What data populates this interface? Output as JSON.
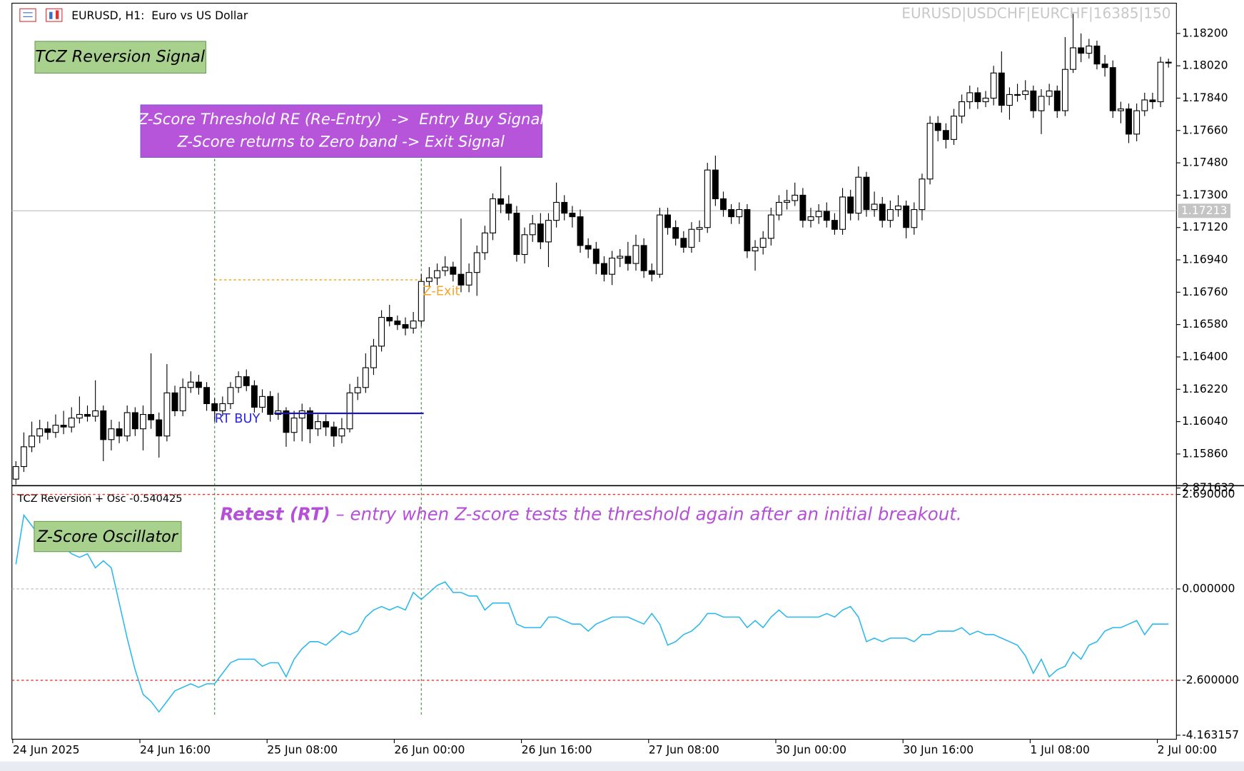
{
  "header": {
    "symbol": "EURUSD, H1:  Euro vs US Dollar",
    "watermark": "EURUSD|USDCHF|EURCHF|16385|150"
  },
  "chart_data": [
    {
      "type": "candlestick",
      "title": "TCZ Reversion Signal",
      "note": [
        "Z-Score Threshold RE (Re-Entry)  ->  Entry Buy Signal",
        "Z-Score returns to Zero band -> Exit Signal"
      ],
      "categories": [
        "24 Jun 2025",
        null,
        null,
        null,
        null,
        null,
        null,
        null,
        null,
        null,
        null,
        null,
        null,
        null,
        null,
        null,
        "24 Jun 16:00",
        null,
        null,
        null,
        null,
        null,
        null,
        null,
        null,
        null,
        null,
        null,
        null,
        null,
        null,
        null,
        "25 Jun 08:00",
        null,
        null,
        null,
        null,
        null,
        null,
        null,
        null,
        null,
        null,
        null,
        null,
        null,
        null,
        null,
        "26 Jun 00:00",
        null,
        null,
        null,
        null,
        null,
        null,
        null,
        null,
        null,
        null,
        null,
        null,
        null,
        null,
        null,
        "26 Jun 16:00",
        null,
        null,
        null,
        null,
        null,
        null,
        null,
        null,
        null,
        null,
        null,
        null,
        null,
        null,
        null,
        "27 Jun 08:00",
        null,
        null,
        null,
        null,
        null,
        null,
        null,
        null,
        null,
        null,
        null,
        null,
        null,
        null,
        null,
        "30 Jun 00:00",
        null,
        null,
        null,
        null,
        null,
        null,
        null,
        null,
        null,
        null,
        null,
        null,
        null,
        null,
        null,
        "30 Jun 16:00",
        null,
        null,
        null,
        null,
        null,
        null,
        null,
        null,
        null,
        null,
        null,
        null,
        null,
        null,
        null,
        "1 Jul 08:00",
        null,
        null,
        null,
        null,
        null,
        null,
        null,
        null,
        null,
        null,
        null,
        null,
        null,
        null,
        null,
        "2 Jul 00:00",
        null
      ],
      "open": [
        1.1572,
        1.1579,
        1.159,
        1.1596,
        1.16,
        1.1598,
        1.1602,
        1.1601,
        1.1606,
        1.1608,
        1.1607,
        1.161,
        1.1594,
        1.16,
        1.1596,
        1.1609,
        1.16,
        1.1608,
        1.1605,
        1.1596,
        1.162,
        1.161,
        1.1623,
        1.1626,
        1.1623,
        1.1614,
        1.161,
        1.1614,
        1.1623,
        1.1629,
        1.1624,
        1.1612,
        1.1618,
        1.1608,
        1.161,
        1.1598,
        1.1606,
        1.161,
        1.16,
        1.1604,
        1.1601,
        1.1596,
        1.16,
        1.162,
        1.1623,
        1.1634,
        1.1646,
        1.1662,
        1.166,
        1.1658,
        1.1656,
        1.166,
        1.1682,
        1.1684,
        1.1688,
        1.169,
        1.1686,
        1.168,
        1.1687,
        1.1698,
        1.1709,
        1.1728,
        1.1725,
        1.172,
        1.1697,
        1.1708,
        1.1714,
        1.1704,
        1.1716,
        1.1726,
        1.172,
        1.1718,
        1.1702,
        1.17,
        1.1692,
        1.1686,
        1.1695,
        1.1696,
        1.1692,
        1.1702,
        1.1688,
        1.1686,
        1.1719,
        1.1712,
        1.1706,
        1.1701,
        1.1711,
        1.1712,
        1.1744,
        1.1728,
        1.1722,
        1.1718,
        1.1722,
        1.1699,
        1.1701,
        1.1706,
        1.1719,
        1.1726,
        1.1727,
        1.173,
        1.1716,
        1.1718,
        1.1721,
        1.1716,
        1.1711,
        1.1729,
        1.172,
        1.174,
        1.1722,
        1.1725,
        1.1716,
        1.1722,
        1.1724,
        1.1712,
        1.1722,
        1.1739,
        1.177,
        1.1766,
        1.1761,
        1.1774,
        1.1782,
        1.1787,
        1.1782,
        1.1784,
        1.1798,
        1.178,
        1.1786,
        1.1786,
        1.1788,
        1.1777,
        1.1785,
        1.1788,
        1.1777,
        1.18,
        1.1812,
        1.1809,
        1.1813,
        1.1803,
        1.1801,
        1.1777,
        1.1778,
        1.1764,
        1.1777,
        1.1783,
        1.1782,
        1.1804
      ],
      "high": [
        1.1582,
        1.1598,
        1.1604,
        1.1605,
        1.1604,
        1.1608,
        1.161,
        1.1612,
        1.1618,
        1.1613,
        1.1627,
        1.1613,
        1.1605,
        1.1604,
        1.1613,
        1.1612,
        1.1613,
        1.1642,
        1.1609,
        1.1636,
        1.1624,
        1.1628,
        1.1632,
        1.163,
        1.1626,
        1.1617,
        1.1618,
        1.1626,
        1.1632,
        1.1633,
        1.1627,
        1.1622,
        1.1621,
        1.162,
        1.1612,
        1.161,
        1.1614,
        1.1612,
        1.1608,
        1.1608,
        1.1604,
        1.1606,
        1.1625,
        1.1629,
        1.1642,
        1.165,
        1.1666,
        1.1669,
        1.1663,
        1.1662,
        1.1665,
        1.1686,
        1.169,
        1.1692,
        1.1696,
        1.1693,
        1.1717,
        1.1692,
        1.1702,
        1.1713,
        1.1731,
        1.1746,
        1.173,
        1.1724,
        1.1712,
        1.1719,
        1.172,
        1.172,
        1.1737,
        1.173,
        1.1724,
        1.1722,
        1.1706,
        1.1704,
        1.1696,
        1.1699,
        1.17,
        1.1704,
        1.1708,
        1.1706,
        1.1692,
        1.1723,
        1.1723,
        1.1716,
        1.171,
        1.1715,
        1.1716,
        1.1748,
        1.1752,
        1.1732,
        1.1725,
        1.1726,
        1.1725,
        1.1705,
        1.171,
        1.1723,
        1.173,
        1.1733,
        1.1737,
        1.1734,
        1.1723,
        1.1725,
        1.1726,
        1.172,
        1.1734,
        1.1733,
        1.1746,
        1.1743,
        1.1732,
        1.1729,
        1.1727,
        1.173,
        1.1727,
        1.1726,
        1.1742,
        1.1774,
        1.1774,
        1.177,
        1.1778,
        1.1786,
        1.1791,
        1.179,
        1.1788,
        1.1802,
        1.181,
        1.179,
        1.1792,
        1.1794,
        1.1791,
        1.1789,
        1.1792,
        1.1791,
        1.1818,
        1.1831,
        1.182,
        1.1817,
        1.1816,
        1.1808,
        1.1805,
        1.1782,
        1.1781,
        1.1781,
        1.1787,
        1.1787,
        1.1807,
        1.1806
      ],
      "low": [
        1.1569,
        1.1576,
        1.1587,
        1.1592,
        1.1594,
        1.1595,
        1.1597,
        1.1598,
        1.1603,
        1.1604,
        1.1604,
        1.1582,
        1.1588,
        1.1592,
        1.1593,
        1.1596,
        1.1588,
        1.16,
        1.1584,
        1.1593,
        1.1607,
        1.1607,
        1.162,
        1.1619,
        1.161,
        1.1604,
        1.1607,
        1.1611,
        1.162,
        1.1621,
        1.1609,
        1.1609,
        1.1604,
        1.1605,
        1.159,
        1.1593,
        1.1593,
        1.1592,
        1.1596,
        1.1596,
        1.159,
        1.1592,
        1.1598,
        1.1616,
        1.162,
        1.163,
        1.1643,
        1.1657,
        1.1655,
        1.1652,
        1.1653,
        1.1657,
        1.1679,
        1.168,
        1.1685,
        1.1682,
        1.1676,
        1.1676,
        1.1674,
        1.1694,
        1.1705,
        1.172,
        1.1716,
        1.1693,
        1.1692,
        1.1704,
        1.17,
        1.169,
        1.1712,
        1.1716,
        1.1712,
        1.1698,
        1.1695,
        1.1686,
        1.1682,
        1.168,
        1.169,
        1.1688,
        1.1688,
        1.1684,
        1.1682,
        1.1684,
        1.1708,
        1.1702,
        1.1698,
        1.1698,
        1.1704,
        1.1709,
        1.1724,
        1.1718,
        1.1714,
        1.1714,
        1.1695,
        1.1688,
        1.1697,
        1.1702,
        1.1716,
        1.1722,
        1.1724,
        1.1712,
        1.1712,
        1.1714,
        1.1712,
        1.1708,
        1.1708,
        1.1716,
        1.1716,
        1.1718,
        1.1718,
        1.1712,
        1.1712,
        1.1718,
        1.1706,
        1.1708,
        1.1716,
        1.1736,
        1.176,
        1.1756,
        1.1758,
        1.177,
        1.1778,
        1.1778,
        1.1779,
        1.178,
        1.1776,
        1.1772,
        1.1782,
        1.1783,
        1.1773,
        1.1764,
        1.178,
        1.1773,
        1.1774,
        1.1798,
        1.1804,
        1.1806,
        1.18,
        1.1796,
        1.1773,
        1.177,
        1.1759,
        1.176,
        1.1774,
        1.1778,
        1.1779,
        1.1801
      ],
      "close": [
        1.1579,
        1.159,
        1.1596,
        1.16,
        1.1598,
        1.1602,
        1.1601,
        1.1606,
        1.1608,
        1.1607,
        1.161,
        1.1594,
        1.16,
        1.1596,
        1.1609,
        1.16,
        1.1608,
        1.1605,
        1.1596,
        1.162,
        1.161,
        1.1623,
        1.1626,
        1.1623,
        1.1614,
        1.161,
        1.1614,
        1.1623,
        1.1629,
        1.1624,
        1.1612,
        1.1618,
        1.1608,
        1.161,
        1.1598,
        1.1606,
        1.161,
        1.16,
        1.1604,
        1.1601,
        1.1596,
        1.16,
        1.162,
        1.1623,
        1.1634,
        1.1646,
        1.1662,
        1.166,
        1.1658,
        1.1656,
        1.166,
        1.1682,
        1.1684,
        1.1688,
        1.169,
        1.1686,
        1.168,
        1.1687,
        1.1698,
        1.1709,
        1.1728,
        1.1725,
        1.172,
        1.1697,
        1.1708,
        1.1714,
        1.1704,
        1.1716,
        1.1726,
        1.172,
        1.1718,
        1.1702,
        1.17,
        1.1692,
        1.1686,
        1.1695,
        1.1696,
        1.1692,
        1.1702,
        1.1688,
        1.1686,
        1.1719,
        1.1712,
        1.1706,
        1.1701,
        1.1711,
        1.1712,
        1.1744,
        1.1728,
        1.1722,
        1.1718,
        1.1722,
        1.1699,
        1.1701,
        1.1706,
        1.1719,
        1.1726,
        1.1727,
        1.173,
        1.1716,
        1.1718,
        1.1721,
        1.1716,
        1.1711,
        1.1729,
        1.172,
        1.174,
        1.1722,
        1.1725,
        1.1716,
        1.1722,
        1.1724,
        1.1712,
        1.1722,
        1.1739,
        1.177,
        1.1766,
        1.1761,
        1.1774,
        1.1782,
        1.1787,
        1.1782,
        1.1784,
        1.1798,
        1.178,
        1.1786,
        1.1786,
        1.1788,
        1.1777,
        1.1785,
        1.1788,
        1.1777,
        1.18,
        1.1812,
        1.1809,
        1.1813,
        1.1803,
        1.1801,
        1.1777,
        1.1778,
        1.1764,
        1.1777,
        1.1783,
        1.1782,
        1.1804,
        1.1804
      ],
      "bull_color": "#ffffff",
      "bear_color": "#000000",
      "outline_color": "#000000",
      "ylim": [
        1.15697,
        1.18364
      ],
      "yticks": [
        {
          "value": 1.182,
          "label": "1.18200"
        },
        {
          "value": 1.1802,
          "label": "1.18020"
        },
        {
          "value": 1.1784,
          "label": "1.17840"
        },
        {
          "value": 1.1766,
          "label": "1.17660"
        },
        {
          "value": 1.1748,
          "label": "1.17480"
        },
        {
          "value": 1.173,
          "label": "1.17300"
        },
        {
          "value": 1.1712,
          "label": "1.17120"
        },
        {
          "value": 1.1694,
          "label": "1.16940"
        },
        {
          "value": 1.1676,
          "label": "1.16760"
        },
        {
          "value": 1.1658,
          "label": "1.16580"
        },
        {
          "value": 1.164,
          "label": "1.16400"
        },
        {
          "value": 1.1622,
          "label": "1.16220"
        },
        {
          "value": 1.1604,
          "label": "1.16040"
        },
        {
          "value": 1.1586,
          "label": "1.15860"
        }
      ],
      "last_price": {
        "value": 1.17213,
        "label": "1.17213"
      },
      "entry": {
        "label": "RT BUY",
        "bar": 25,
        "price": 1.16086
      },
      "exit": {
        "label": "Z-Exit",
        "bar": 51,
        "price": 1.16829
      }
    },
    {
      "type": "line",
      "title": "Z-Score Oscillator",
      "indicator_label": "TCZ Reversion + Osc -0.540425",
      "annotation_bold": "Retest (RT)",
      "annotation": " – entry when Z-score tests the threshold again after an initial breakout.",
      "color": "#2ab8ee",
      "values": [
        0.7,
        2.1,
        1.8,
        1.5,
        1.4,
        1.3,
        1.2,
        1.0,
        0.9,
        1.0,
        0.6,
        0.8,
        0.6,
        -0.4,
        -1.4,
        -2.3,
        -3.0,
        -3.2,
        -3.5,
        -3.2,
        -2.9,
        -2.8,
        -2.7,
        -2.8,
        -2.7,
        -2.7,
        -2.4,
        -2.1,
        -2.0,
        -2.0,
        -2.0,
        -2.2,
        -2.1,
        -2.1,
        -2.5,
        -2.0,
        -1.7,
        -1.5,
        -1.5,
        -1.6,
        -1.4,
        -1.2,
        -1.3,
        -1.2,
        -0.8,
        -0.6,
        -0.5,
        -0.6,
        -0.5,
        -0.6,
        -0.1,
        -0.3,
        -0.1,
        0.1,
        0.2,
        -0.1,
        -0.1,
        -0.2,
        -0.2,
        -0.6,
        -0.4,
        -0.4,
        -0.4,
        -1.0,
        -1.1,
        -1.1,
        -1.1,
        -0.8,
        -0.8,
        -0.9,
        -1.0,
        -1.0,
        -1.2,
        -1.0,
        -0.9,
        -0.8,
        -0.8,
        -0.8,
        -0.9,
        -1.0,
        -0.7,
        -1.0,
        -1.6,
        -1.5,
        -1.3,
        -1.2,
        -1.0,
        -0.7,
        -0.7,
        -0.8,
        -0.8,
        -0.8,
        -1.1,
        -0.9,
        -1.1,
        -0.8,
        -0.6,
        -0.8,
        -0.8,
        -0.8,
        -0.8,
        -0.8,
        -0.7,
        -0.8,
        -0.6,
        -0.5,
        -0.8,
        -1.5,
        -1.4,
        -1.5,
        -1.4,
        -1.4,
        -1.4,
        -1.5,
        -1.3,
        -1.3,
        -1.2,
        -1.2,
        -1.2,
        -1.1,
        -1.3,
        -1.2,
        -1.3,
        -1.3,
        -1.4,
        -1.5,
        -1.6,
        -1.9,
        -2.4,
        -2.0,
        -2.5,
        -2.3,
        -2.2,
        -1.8,
        -2.0,
        -1.6,
        -1.5,
        -1.2,
        -1.1,
        -1.1,
        -1.0,
        -0.9,
        -1.3,
        -1.0,
        -1.0,
        -1.0
      ],
      "ylim": [
        -4.163157,
        2.871632
      ],
      "yticks": [
        {
          "value": 2.871632,
          "label": "2.871632"
        },
        {
          "value": 2.69,
          "label": "2.690000"
        },
        {
          "value": 0,
          "label": "0.000000"
        },
        {
          "value": -2.6,
          "label": "-2.600000"
        },
        {
          "value": -4.163157,
          "label": "-4.163157"
        }
      ],
      "levels": [
        2.69,
        0,
        -2.6
      ],
      "level_colors": [
        "#e8322f",
        "#c0c0c0",
        "#e8322f"
      ]
    }
  ]
}
